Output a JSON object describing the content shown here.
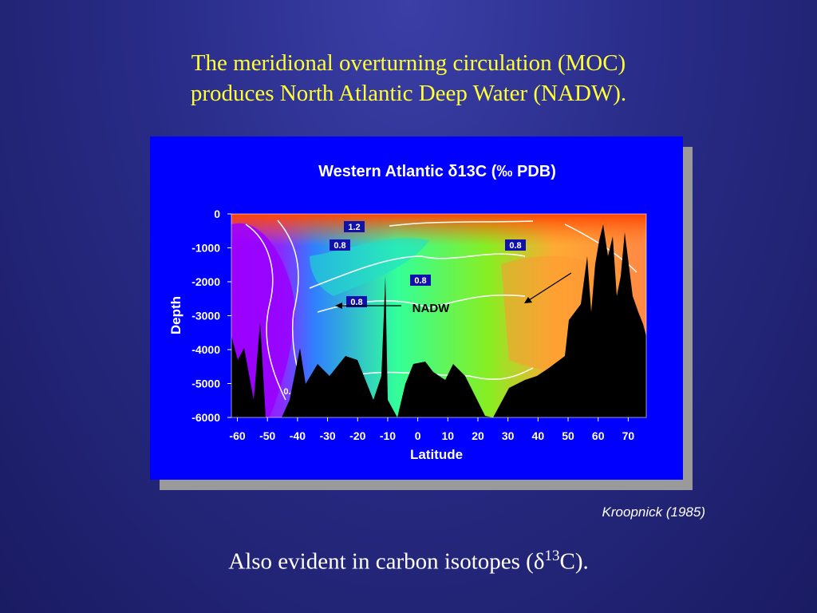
{
  "slide": {
    "title_line1": "The meridional overturning circulation (MOC)",
    "title_line2": "produces North Atlantic Deep Water (NADW).",
    "credit": "Kroopnick (1985)",
    "caption_prefix": "Also evident in carbon isotopes (",
    "caption_delta": "δ",
    "caption_sup": "13",
    "caption_suffix": "C)."
  },
  "chart_data": {
    "type": "heatmap",
    "title": "Western Atlantic δ13C (‰ PDB)",
    "xlabel": "Latitude",
    "ylabel": "Depth",
    "xlim": [
      -62,
      76
    ],
    "ylim": [
      -6000,
      0
    ],
    "x_ticks": [
      "-60",
      "-50",
      "-40",
      "-30",
      "-20",
      "-10",
      "0",
      "10",
      "20",
      "30",
      "40",
      "50",
      "60",
      "70"
    ],
    "y_ticks": [
      "0",
      "-1000",
      "-2000",
      "-3000",
      "-4000",
      "-5000",
      "-6000"
    ],
    "contour_labels": [
      "1.2",
      "0.8",
      "0.8",
      "0.8",
      "0.8",
      "0.4"
    ],
    "annotation": "NADW",
    "colors": {
      "background": "#0000ff",
      "low": "#a000ff",
      "mid_low": "#2f80ff",
      "mid": "#33ff99",
      "mid_high": "#88ee22",
      "high": "#ffaa33",
      "max": "#ff4400",
      "seafloor": "#000000"
    }
  }
}
